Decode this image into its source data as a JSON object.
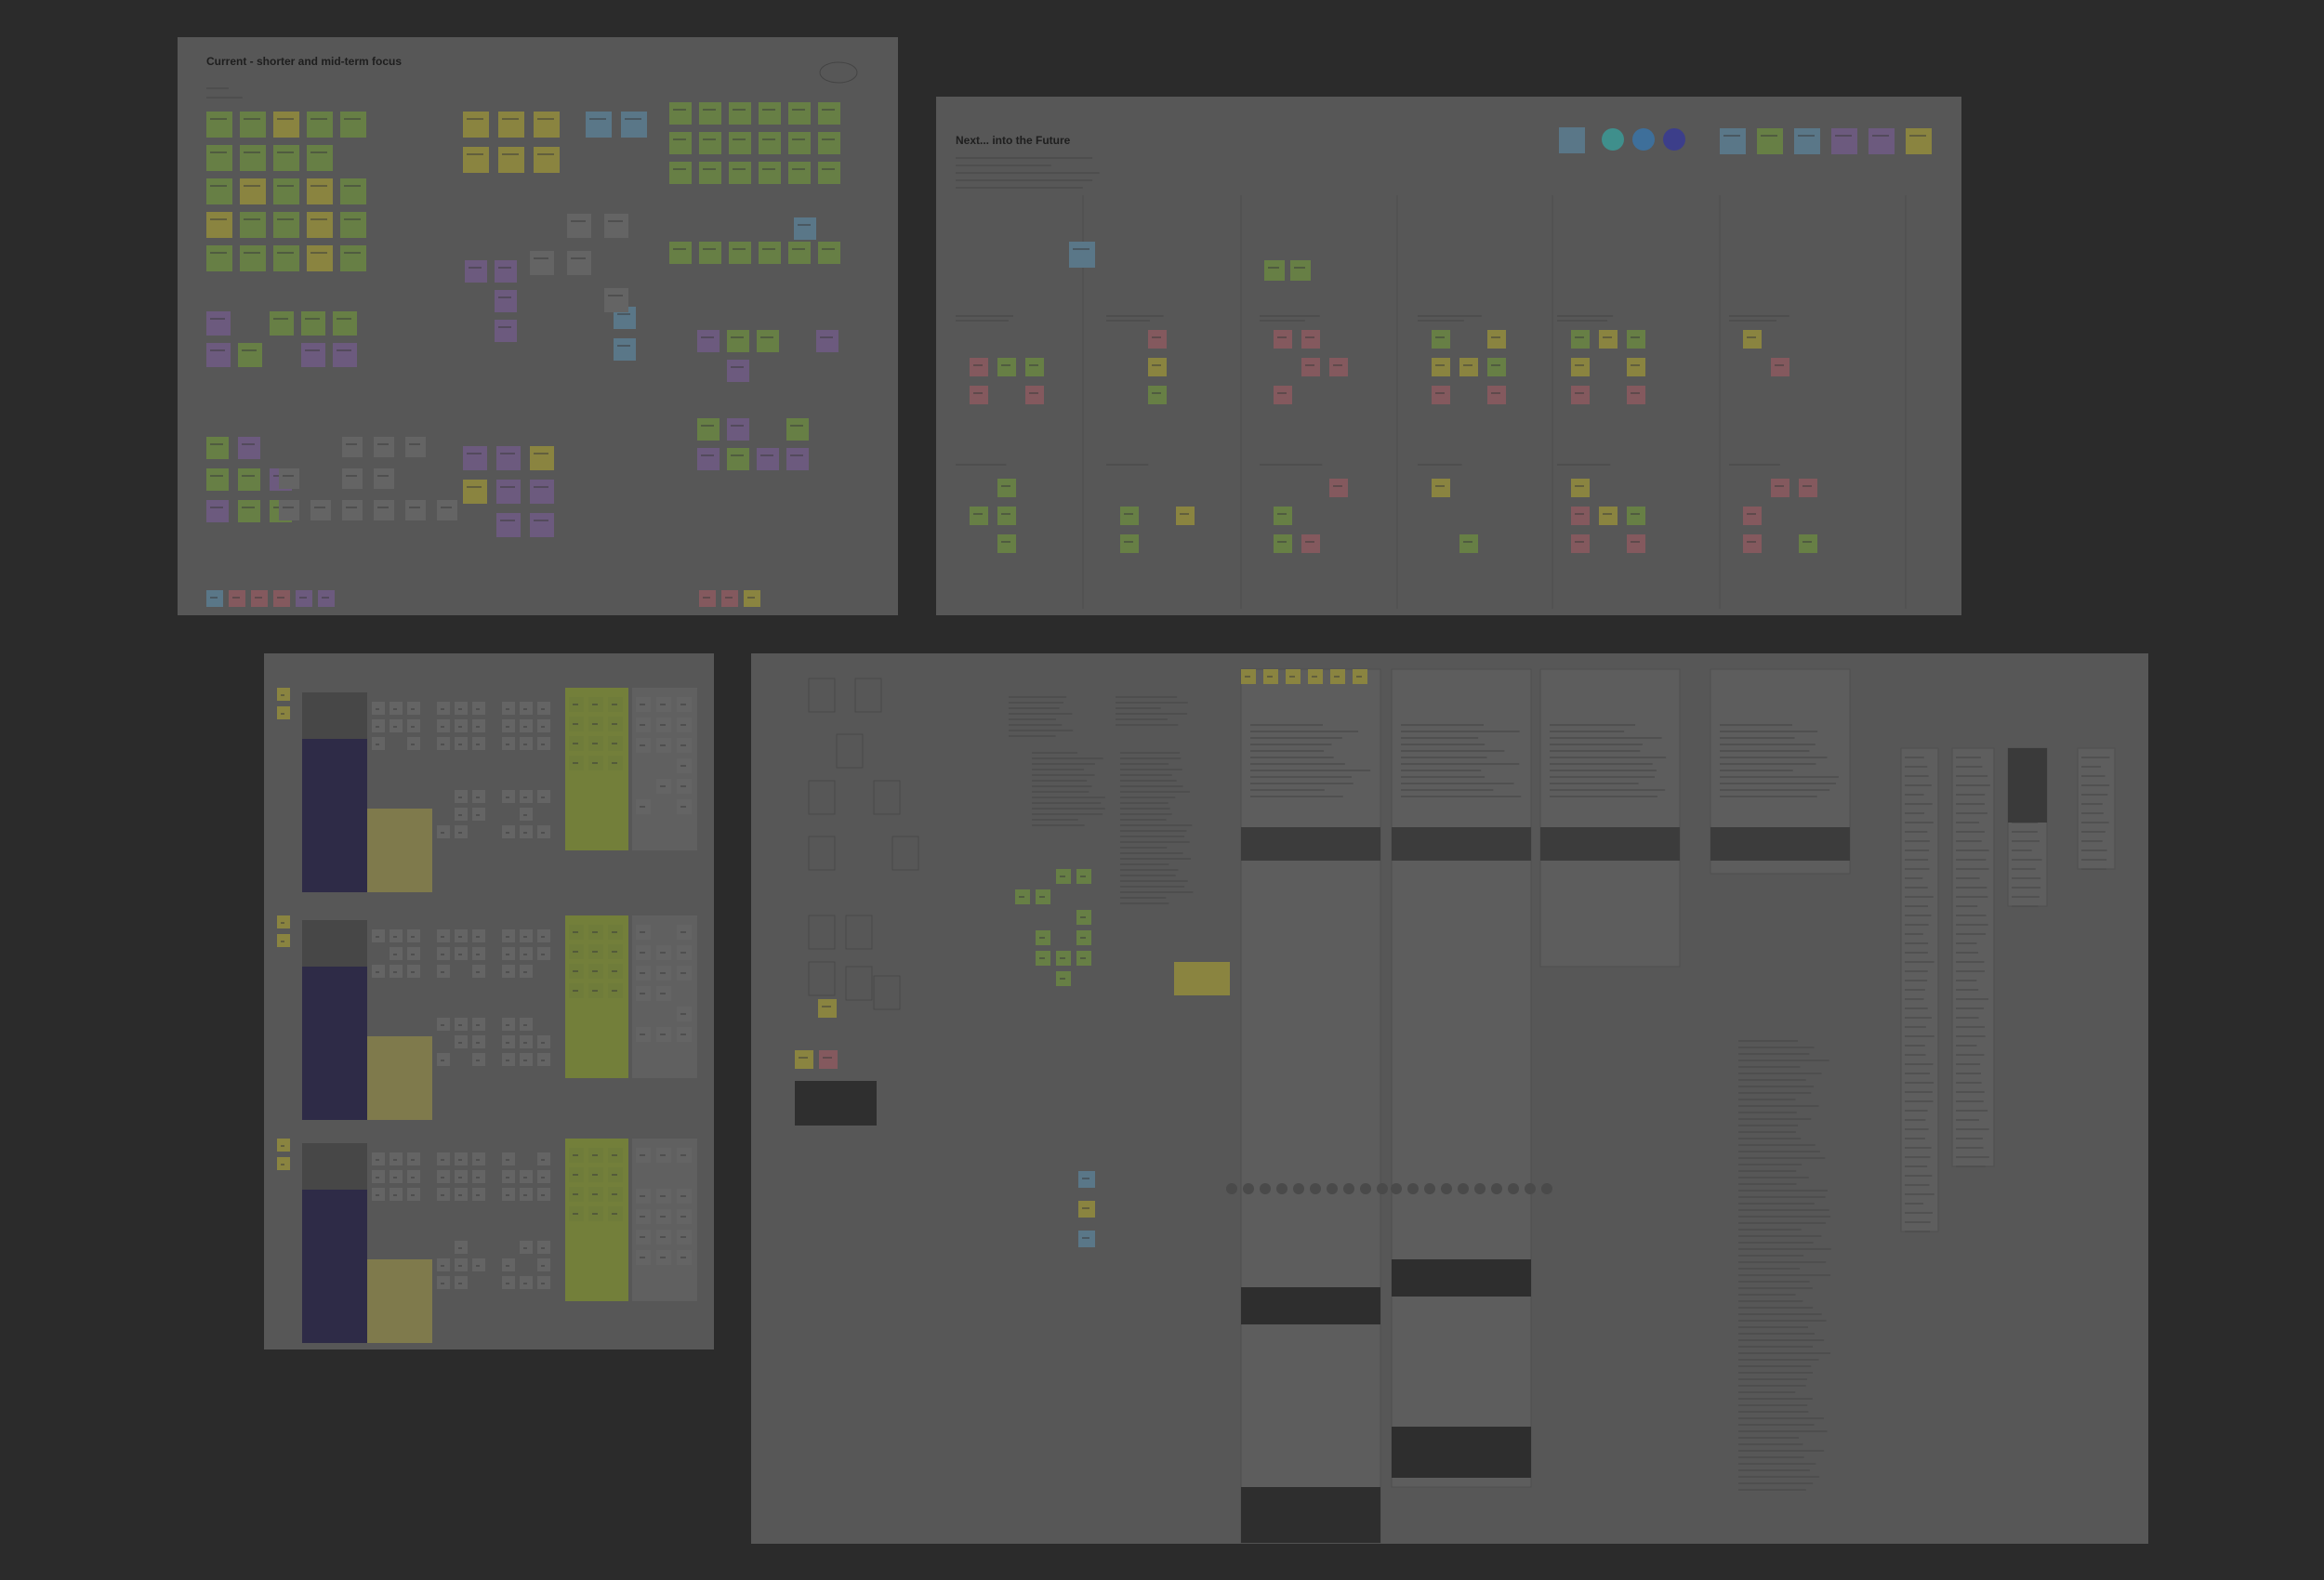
{
  "boards": [
    {
      "title": "Current - shorter and mid-term focus"
    },
    {
      "title": "Next... into the Future"
    }
  ]
}
